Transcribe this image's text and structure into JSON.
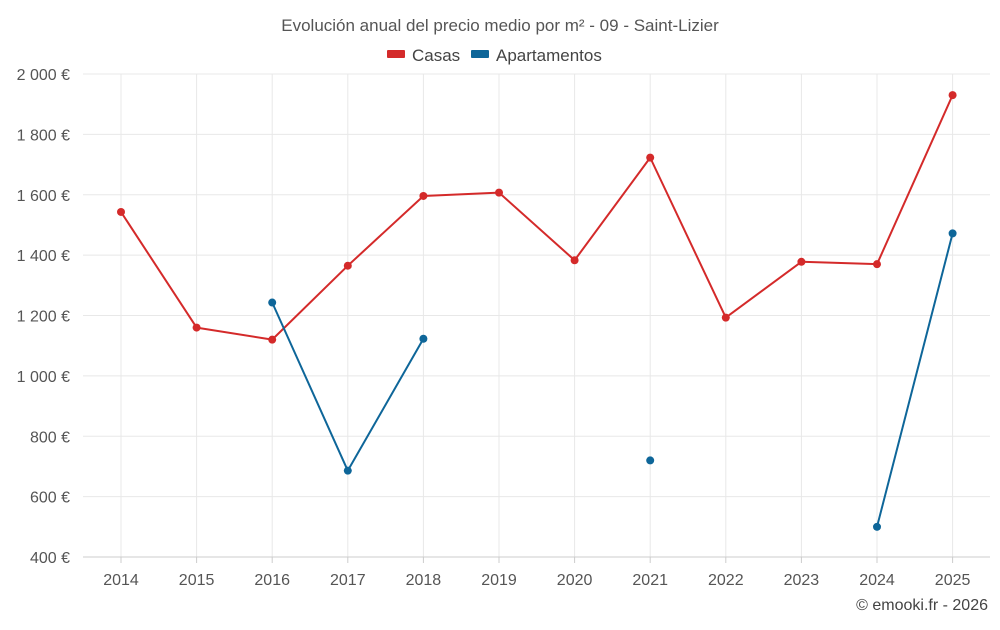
{
  "chart_data": {
    "type": "line",
    "title": "Evolución anual del precio medio por m² - 09 - Saint-Lizier",
    "categories": [
      "2014",
      "2015",
      "2016",
      "2017",
      "2018",
      "2019",
      "2020",
      "2021",
      "2022",
      "2023",
      "2024",
      "2025"
    ],
    "series": [
      {
        "name": "Casas",
        "color": "#d42a2a",
        "values": [
          1543,
          1160,
          1120,
          1365,
          1596,
          1607,
          1383,
          1723,
          1193,
          1378,
          1370,
          1930
        ]
      },
      {
        "name": "Apartamentos",
        "color": "#0e6699",
        "values": [
          null,
          null,
          1243,
          686,
          1123,
          null,
          null,
          720,
          null,
          null,
          500,
          1472
        ]
      }
    ],
    "yticks": [
      400,
      600,
      800,
      1000,
      1200,
      1400,
      1600,
      1800,
      2000
    ],
    "ytick_labels": [
      "400 €",
      "600 €",
      "800 €",
      "1 000 €",
      "1 200 €",
      "1 400 €",
      "1 600 €",
      "1 800 €",
      "2 000 €"
    ],
    "ylim": [
      400,
      2000
    ],
    "xlabel": "",
    "ylabel": "",
    "grid": true,
    "legend_position": "top-center"
  },
  "credit": "© emooki.fr - 2026"
}
